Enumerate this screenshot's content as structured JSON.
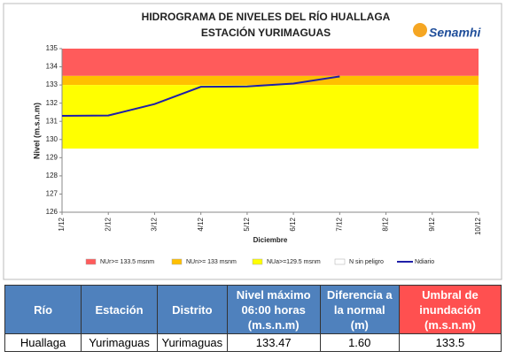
{
  "chart_data": {
    "type": "line",
    "title": "HIDROGRAMA DE NIVELES DEL RÍO HUALLAGA",
    "subtitle": "ESTACIÓN YURIMAGUAS",
    "logo": "Senamhi",
    "y_label": "Nivel (m.s.n.m)",
    "x_label": "Diciembre",
    "categories": [
      "1/12",
      "2/12",
      "3/12",
      "4/12",
      "5/12",
      "6/12",
      "7/12",
      "8/12",
      "9/12",
      "10/12"
    ],
    "ylim": [
      126,
      135
    ],
    "yticks": [
      126,
      127,
      128,
      129,
      130,
      131,
      132,
      133,
      134,
      135
    ],
    "bands": [
      {
        "name": "NUr>= 133.5 msnm",
        "color": "#ff5b5b",
        "from": 133.5,
        "to": 135
      },
      {
        "name": "NUn>= 133 msnm",
        "color": "#ffc000",
        "from": 133,
        "to": 133.5
      },
      {
        "name": "NUa>=129.5 msnm",
        "color": "#ffff00",
        "from": 129.5,
        "to": 133
      },
      {
        "name": "N sin peligro",
        "color": "#ffffff",
        "from": 126,
        "to": 129.5
      }
    ],
    "series": [
      {
        "name": "Ndiario",
        "color": "#1f1fa8",
        "values": [
          131.3,
          131.32,
          131.95,
          132.9,
          132.92,
          133.08,
          133.47,
          null,
          null,
          null
        ]
      }
    ]
  },
  "table": {
    "headers": [
      "Río",
      "Estación",
      "Distrito",
      "Nivel máximo 06:00 horas (m.s.n.m)",
      "Diferencia a la normal (m)",
      "Umbral de inundación (m.s.n.m)"
    ],
    "rows": [
      [
        "Huallaga",
        "Yurimaguas",
        "Yurimaguas",
        "133.47",
        "1.60",
        "133.5"
      ]
    ]
  }
}
